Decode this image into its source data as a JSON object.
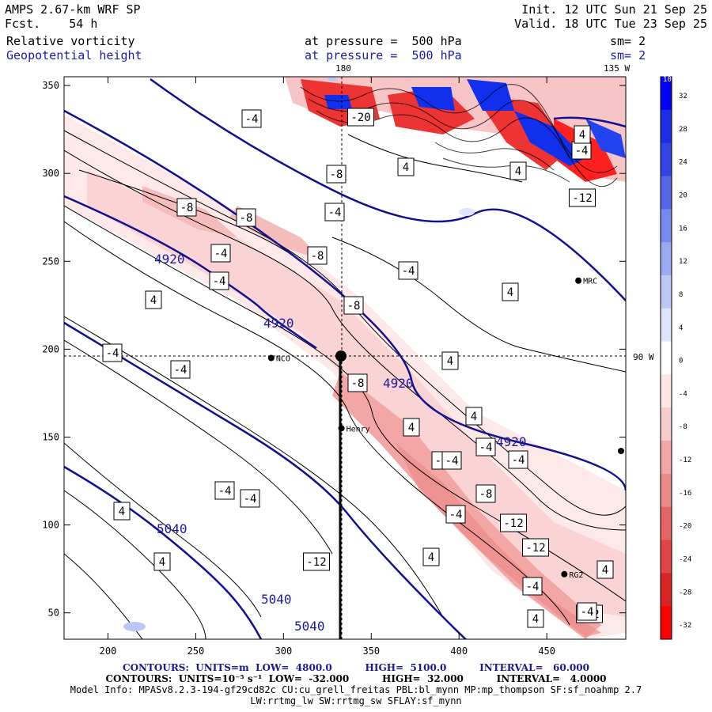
{
  "header": {
    "model": "AMPS 2.67-km WRF SP",
    "fcst_label": "Fcst.",
    "fcst_value": "54 h",
    "init": "Init. 12 UTC Sun 21 Sep 25",
    "valid": "Valid. 18 UTC Tue 23 Sep 25",
    "field1": "Relative vorticity",
    "field1_level": "at pressure =  500 hPa",
    "field1_sm": "sm= 2",
    "field2": "Geopotential height",
    "field2_level": "at pressure =  500 hPa",
    "field2_sm": "sm= 2"
  },
  "map": {
    "top_labels": {
      "lon180": "180",
      "lon135": "135 W"
    },
    "side_label": "90 W",
    "stations": [
      {
        "name": "NCO",
        "x": 293,
        "y": 195
      },
      {
        "name": "Henry",
        "x": 333,
        "y": 155
      },
      {
        "name": "MRC",
        "x": 468,
        "y": 239
      },
      {
        "name": "RG2",
        "x": 460,
        "y": 72
      }
    ],
    "height_contour_labels": [
      "4920",
      "4920",
      "4920",
      "4920",
      "5040",
      "5040",
      "5040"
    ],
    "vorticity_labels": [
      "-4",
      "-20",
      "-8",
      "4",
      "4",
      "-4",
      "-12",
      "-8",
      "-8",
      "-4",
      "-8",
      "-4",
      "-4",
      "4",
      "-8",
      "4",
      "-4",
      "4",
      "-4",
      "-8",
      "4",
      "4",
      "-4",
      "-8",
      "-4",
      "-4",
      "-4",
      "4",
      "4",
      "-12",
      "-4",
      "-8",
      "4",
      "-4",
      "-12",
      "-12",
      "4",
      "-4",
      "4",
      "-4",
      "4",
      "-12",
      "-4"
    ]
  },
  "chart_data": {
    "type": "heatmap",
    "x_axis": {
      "ticks": [
        "200",
        "250",
        "300",
        "350",
        "400",
        "450"
      ],
      "range": [
        175,
        495
      ]
    },
    "y_axis": {
      "ticks": [
        "50",
        "100",
        "150",
        "200",
        "250",
        "300",
        "350"
      ],
      "range": [
        35,
        355
      ]
    },
    "colorbar": {
      "unit_label": "10⁻⁵ s⁻¹",
      "ticks": [
        "32",
        "28",
        "24",
        "20",
        "16",
        "12",
        "8",
        "4",
        "0",
        "-4",
        "-8",
        "-12",
        "-16",
        "-20",
        "-24",
        "-28",
        "-32"
      ],
      "colors": [
        "#0000ff",
        "#1a2ee8",
        "#3344e6",
        "#5566e8",
        "#7788ee",
        "#99aaf2",
        "#bbc8f7",
        "#dde4fb",
        "#ffffff",
        "#fde6e6",
        "#f9cccc",
        "#f2a6a6",
        "#ec8a8a",
        "#e66666",
        "#e04444",
        "#d92222",
        "#ff0000"
      ]
    }
  },
  "footer": {
    "line1": "CONTOURS:  UNITS=m  LOW=  4800.0          HIGH=  5100.0          INTERVAL=   60.000",
    "line2": "CONTOURS:  UNITS=10⁻⁵ s⁻¹  LOW=  -32.000          HIGH=  32.000          INTERVAL=   4.0000",
    "line3": "Model Info: MPASv8.2.3-194-gf29cd82c CU:cu_grell_freitas PBL:bl_mynn MP:mp_thompson SF:sf_noahmp 2.7",
    "line4": "LW:rrtmg_lw SW:rrtmg_sw SFLAY:sf_mynn"
  }
}
